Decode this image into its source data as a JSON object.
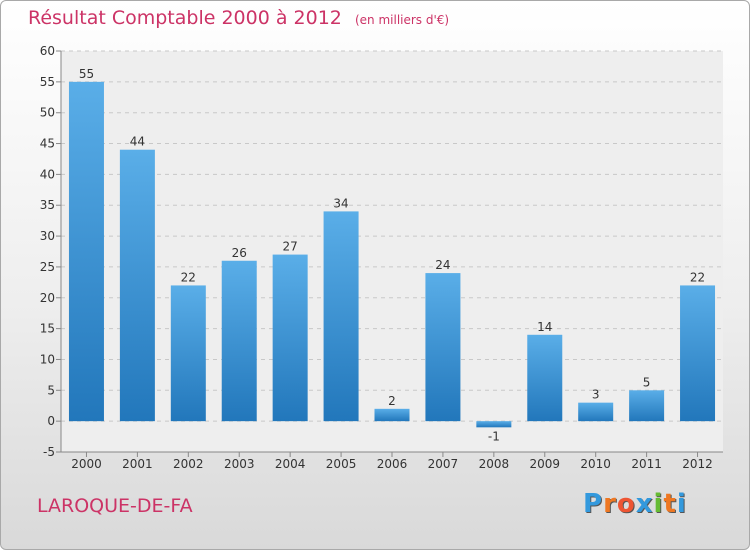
{
  "header": {
    "title": "Résultat Comptable 2000 à 2012",
    "subtitle": "(en milliers d'€)"
  },
  "commune": "LAROQUE-DE-FA",
  "logo": {
    "letters": [
      "P",
      "r",
      "o",
      "x",
      "i",
      "t",
      "i"
    ],
    "colors": [
      "#3399dd",
      "#ee7722",
      "#ee5533",
      "#3399dd",
      "#66bb33",
      "#ee7722",
      "#3399dd"
    ]
  },
  "colors": {
    "bar_light": "#5aaee8",
    "bar_dark": "#2277bb",
    "title": "#cc3366"
  },
  "chart_data": {
    "type": "bar",
    "title": "Résultat Comptable 2000 à 2012",
    "subtitle": "(en milliers d'€)",
    "categories": [
      "2000",
      "2001",
      "2002",
      "2003",
      "2004",
      "2005",
      "2006",
      "2007",
      "2008",
      "2009",
      "2010",
      "2011",
      "2012"
    ],
    "values": [
      55,
      44,
      22,
      26,
      27,
      34,
      2,
      24,
      -1,
      14,
      3,
      5,
      22
    ],
    "ylim": [
      -5,
      60
    ],
    "yticks": [
      -5,
      0,
      5,
      10,
      15,
      20,
      25,
      30,
      35,
      40,
      45,
      50,
      55,
      60
    ],
    "grid": true,
    "legend": "none"
  }
}
